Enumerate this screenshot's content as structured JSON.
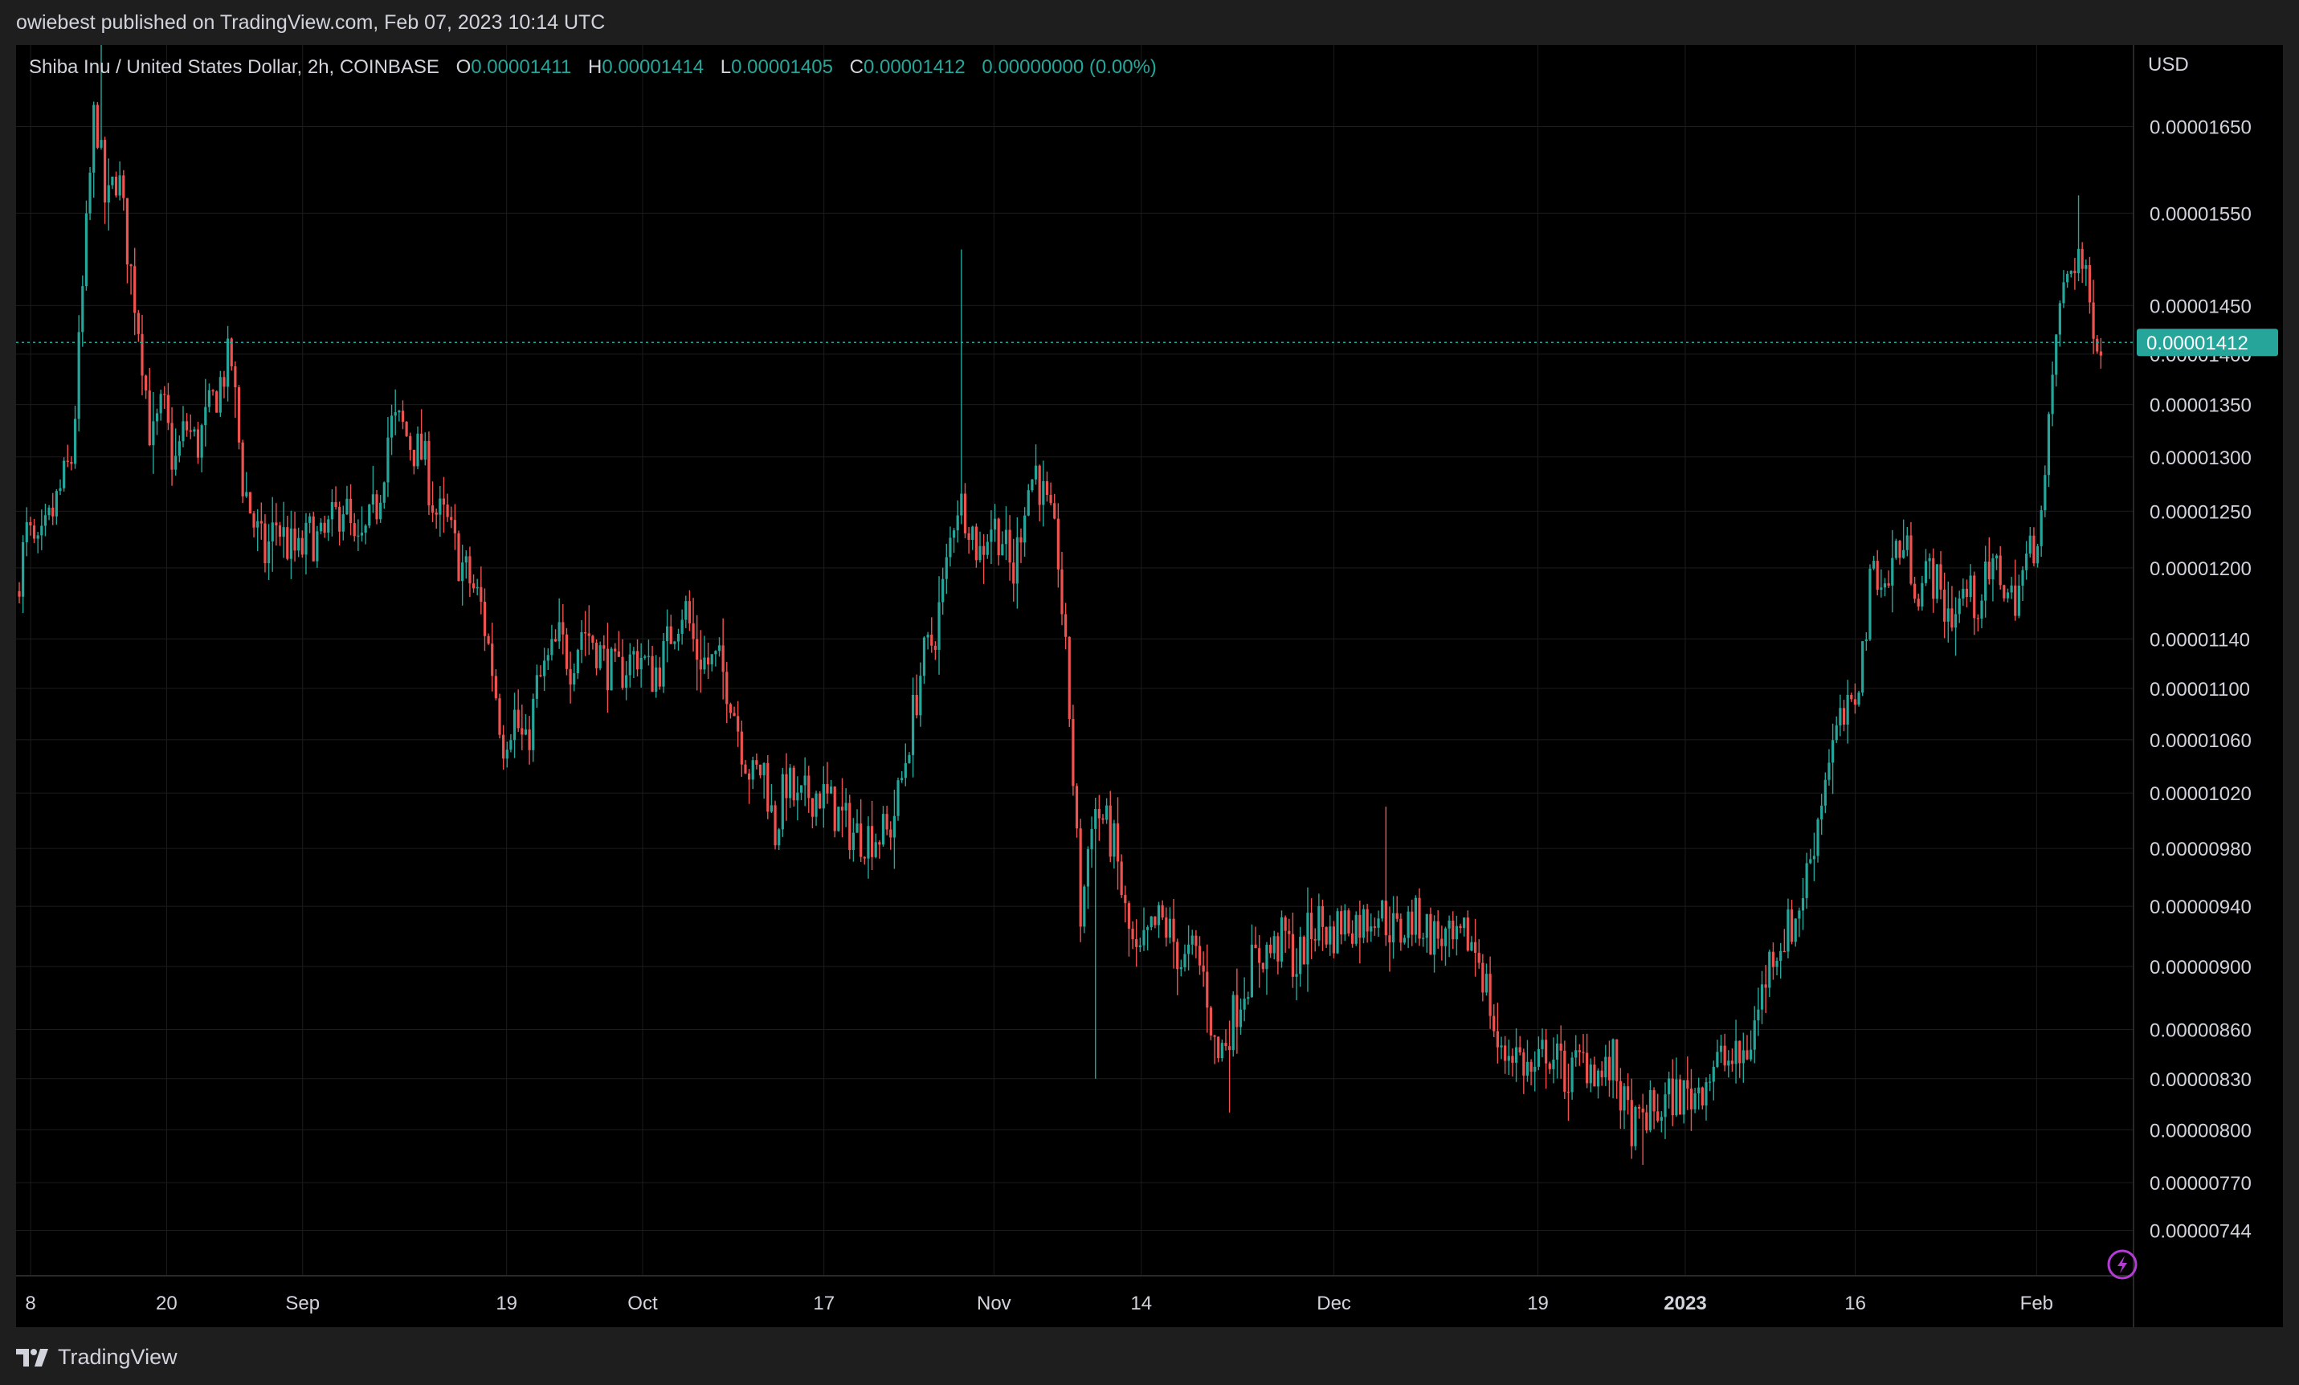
{
  "header": {
    "published": "owiebest published on TradingView.com, Feb 07, 2023 10:14 UTC"
  },
  "legend": {
    "symbol": "Shiba Inu / United States Dollar, 2h, COINBASE",
    "o_label": "O",
    "o": "0.00001411",
    "h_label": "H",
    "h": "0.00001414",
    "l_label": "L",
    "l": "0.00001405",
    "c_label": "C",
    "c": "0.00001412",
    "change": "0.00000000 (0.00%)"
  },
  "footer": {
    "brand": "TradingView"
  },
  "colors": {
    "up": "#26a69a",
    "down": "#ef5350",
    "background": "#000000",
    "grid": "#1c1c1c",
    "text": "#d1d4dc"
  },
  "icons": {
    "logo": "tradingview-logo-icon",
    "lightning": "lightning-icon"
  },
  "chart_data": {
    "type": "candlestick",
    "currency": "USD",
    "y_scale": "log",
    "ylim": [
      7.2e-06,
      1.75e-05
    ],
    "current_price": 1.412e-05,
    "current_label": "0.00001412",
    "grid": true,
    "y_ticks": [
      {
        "v": 1.65e-05,
        "label": "0.00001650"
      },
      {
        "v": 1.55e-05,
        "label": "0.00001550"
      },
      {
        "v": 1.45e-05,
        "label": "0.00001450"
      },
      {
        "v": 1.4e-05,
        "label": "0.00001400"
      },
      {
        "v": 1.35e-05,
        "label": "0.00001350"
      },
      {
        "v": 1.3e-05,
        "label": "0.00001300"
      },
      {
        "v": 1.25e-05,
        "label": "0.00001250"
      },
      {
        "v": 1.2e-05,
        "label": "0.00001200"
      },
      {
        "v": 1.14e-05,
        "label": "0.00001140"
      },
      {
        "v": 1.1e-05,
        "label": "0.00001100"
      },
      {
        "v": 1.06e-05,
        "label": "0.00001060"
      },
      {
        "v": 1.02e-05,
        "label": "0.00001020"
      },
      {
        "v": 9.8e-06,
        "label": "0.00000980"
      },
      {
        "v": 9.4e-06,
        "label": "0.00000940"
      },
      {
        "v": 9e-06,
        "label": "0.00000900"
      },
      {
        "v": 8.6e-06,
        "label": "0.00000860"
      },
      {
        "v": 8.3e-06,
        "label": "0.00000830"
      },
      {
        "v": 8e-06,
        "label": "0.00000800"
      },
      {
        "v": 7.7e-06,
        "label": "0.00000770"
      },
      {
        "v": 7.44e-06,
        "label": "0.00000744"
      }
    ],
    "x_start": "2022-08-07",
    "x_end": "2023-02-07",
    "x_ticks": [
      {
        "date": "2022-08-08",
        "label": "8"
      },
      {
        "date": "2022-08-20",
        "label": "20"
      },
      {
        "date": "2022-09-01",
        "label": "Sep"
      },
      {
        "date": "2022-09-19",
        "label": "19"
      },
      {
        "date": "2022-10-01",
        "label": "Oct"
      },
      {
        "date": "2022-10-17",
        "label": "17"
      },
      {
        "date": "2022-11-01",
        "label": "Nov"
      },
      {
        "date": "2022-11-14",
        "label": "14"
      },
      {
        "date": "2022-12-01",
        "label": "Dec"
      },
      {
        "date": "2022-12-19",
        "label": "19"
      },
      {
        "date": "2023-01-01",
        "label": "2023",
        "bold": true
      },
      {
        "date": "2023-01-16",
        "label": "16"
      },
      {
        "date": "2023-02-01",
        "label": "Feb"
      }
    ],
    "close_series": [
      [
        "2022-08-07",
        1.18e-05
      ],
      [
        "2022-08-08",
        1.23e-05
      ],
      [
        "2022-08-09",
        1.21e-05
      ],
      [
        "2022-08-10",
        1.24e-05
      ],
      [
        "2022-08-11",
        1.27e-05
      ],
      [
        "2022-08-12",
        1.3e-05
      ],
      [
        "2022-08-13",
        1.48e-05
      ],
      [
        "2022-08-14",
        1.68e-05
      ],
      [
        "2022-08-15",
        1.55e-05
      ],
      [
        "2022-08-16",
        1.6e-05
      ],
      [
        "2022-08-17",
        1.5e-05
      ],
      [
        "2022-08-18",
        1.42e-05
      ],
      [
        "2022-08-19",
        1.31e-05
      ],
      [
        "2022-08-20",
        1.35e-05
      ],
      [
        "2022-08-21",
        1.29e-05
      ],
      [
        "2022-08-22",
        1.33e-05
      ],
      [
        "2022-08-23",
        1.31e-05
      ],
      [
        "2022-08-24",
        1.34e-05
      ],
      [
        "2022-08-25",
        1.37e-05
      ],
      [
        "2022-08-26",
        1.4e-05
      ],
      [
        "2022-08-27",
        1.28e-05
      ],
      [
        "2022-08-28",
        1.24e-05
      ],
      [
        "2022-08-29",
        1.21e-05
      ],
      [
        "2022-08-30",
        1.24e-05
      ],
      [
        "2022-08-31",
        1.22e-05
      ],
      [
        "2022-09-01",
        1.21e-05
      ],
      [
        "2022-09-02",
        1.23e-05
      ],
      [
        "2022-09-03",
        1.22e-05
      ],
      [
        "2022-09-04",
        1.24e-05
      ],
      [
        "2022-09-05",
        1.26e-05
      ],
      [
        "2022-09-06",
        1.21e-05
      ],
      [
        "2022-09-07",
        1.23e-05
      ],
      [
        "2022-09-08",
        1.26e-05
      ],
      [
        "2022-09-09",
        1.33e-05
      ],
      [
        "2022-09-10",
        1.33e-05
      ],
      [
        "2022-09-11",
        1.31e-05
      ],
      [
        "2022-09-12",
        1.3e-05
      ],
      [
        "2022-09-13",
        1.25e-05
      ],
      [
        "2022-09-14",
        1.24e-05
      ],
      [
        "2022-09-15",
        1.21e-05
      ],
      [
        "2022-09-16",
        1.19e-05
      ],
      [
        "2022-09-17",
        1.17e-05
      ],
      [
        "2022-09-18",
        1.12e-05
      ],
      [
        "2022-09-19",
        1.06e-05
      ],
      [
        "2022-09-20",
        1.08e-05
      ],
      [
        "2022-09-21",
        1.05e-05
      ],
      [
        "2022-09-22",
        1.1e-05
      ],
      [
        "2022-09-23",
        1.12e-05
      ],
      [
        "2022-09-24",
        1.14e-05
      ],
      [
        "2022-09-25",
        1.12e-05
      ],
      [
        "2022-09-26",
        1.15e-05
      ],
      [
        "2022-09-27",
        1.14e-05
      ],
      [
        "2022-09-28",
        1.12e-05
      ],
      [
        "2022-09-29",
        1.11e-05
      ],
      [
        "2022-09-30",
        1.12e-05
      ],
      [
        "2022-10-01",
        1.13e-05
      ],
      [
        "2022-10-02",
        1.11e-05
      ],
      [
        "2022-10-03",
        1.12e-05
      ],
      [
        "2022-10-04",
        1.15e-05
      ],
      [
        "2022-10-05",
        1.17e-05
      ],
      [
        "2022-10-06",
        1.13e-05
      ],
      [
        "2022-10-07",
        1.12e-05
      ],
      [
        "2022-10-08",
        1.12e-05
      ],
      [
        "2022-10-09",
        1.1e-05
      ],
      [
        "2022-10-10",
        1.06e-05
      ],
      [
        "2022-10-11",
        1.03e-05
      ],
      [
        "2022-10-12",
        1.04e-05
      ],
      [
        "2022-10-13",
        9.9e-06
      ],
      [
        "2022-10-14",
        1.03e-05
      ],
      [
        "2022-10-15",
        1.01e-05
      ],
      [
        "2022-10-16",
        1.02e-05
      ],
      [
        "2022-10-17",
        1.02e-05
      ],
      [
        "2022-10-18",
        1.01e-05
      ],
      [
        "2022-10-19",
        1e-05
      ],
      [
        "2022-10-20",
        9.9e-06
      ],
      [
        "2022-10-21",
        9.9e-06
      ],
      [
        "2022-10-22",
        9.9e-06
      ],
      [
        "2022-10-23",
        9.9e-06
      ],
      [
        "2022-10-24",
        1.02e-05
      ],
      [
        "2022-10-25",
        1.07e-05
      ],
      [
        "2022-10-26",
        1.12e-05
      ],
      [
        "2022-10-27",
        1.14e-05
      ],
      [
        "2022-10-28",
        1.19e-05
      ],
      [
        "2022-10-29",
        1.26e-05
      ],
      [
        "2022-10-30",
        1.25e-05
      ],
      [
        "2022-10-31",
        1.21e-05
      ],
      [
        "2022-11-01",
        1.24e-05
      ],
      [
        "2022-11-02",
        1.23e-05
      ],
      [
        "2022-11-03",
        1.19e-05
      ],
      [
        "2022-11-04",
        1.26e-05
      ],
      [
        "2022-11-05",
        1.29e-05
      ],
      [
        "2022-11-06",
        1.25e-05
      ],
      [
        "2022-11-07",
        1.21e-05
      ],
      [
        "2022-11-08",
        1.08e-05
      ],
      [
        "2022-11-09",
        9.3e-06
      ],
      [
        "2022-11-10",
        1.01e-05
      ],
      [
        "2022-11-11",
        1e-05
      ],
      [
        "2022-11-12",
        9.8e-06
      ],
      [
        "2022-11-13",
        9.3e-06
      ],
      [
        "2022-11-14",
        9e-06
      ],
      [
        "2022-11-15",
        9.2e-06
      ],
      [
        "2022-11-16",
        9.3e-06
      ],
      [
        "2022-11-17",
        9.2e-06
      ],
      [
        "2022-11-18",
        9e-06
      ],
      [
        "2022-11-19",
        9.1e-06
      ],
      [
        "2022-11-20",
        8.9e-06
      ],
      [
        "2022-11-21",
        8.4e-06
      ],
      [
        "2022-11-22",
        8.6e-06
      ],
      [
        "2022-11-23",
        8.8e-06
      ],
      [
        "2022-11-24",
        9e-06
      ],
      [
        "2022-11-25",
        9.1e-06
      ],
      [
        "2022-11-26",
        9.1e-06
      ],
      [
        "2022-11-27",
        9.2e-06
      ],
      [
        "2022-11-28",
        9e-06
      ],
      [
        "2022-11-29",
        9.2e-06
      ],
      [
        "2022-11-30",
        9.3e-06
      ],
      [
        "2022-12-01",
        9.2e-06
      ],
      [
        "2022-12-02",
        9.3e-06
      ],
      [
        "2022-12-03",
        9.3e-06
      ],
      [
        "2022-12-04",
        9.3e-06
      ],
      [
        "2022-12-05",
        9.4e-06
      ],
      [
        "2022-12-06",
        9.3e-06
      ],
      [
        "2022-12-07",
        9.2e-06
      ],
      [
        "2022-12-08",
        9.3e-06
      ],
      [
        "2022-12-09",
        9.3e-06
      ],
      [
        "2022-12-10",
        9.2e-06
      ],
      [
        "2022-12-11",
        9.2e-06
      ],
      [
        "2022-12-12",
        9.1e-06
      ],
      [
        "2022-12-13",
        9.2e-06
      ],
      [
        "2022-12-14",
        9.1e-06
      ],
      [
        "2022-12-15",
        8.8e-06
      ],
      [
        "2022-12-16",
        8.4e-06
      ],
      [
        "2022-12-17",
        8.5e-06
      ],
      [
        "2022-12-18",
        8.4e-06
      ],
      [
        "2022-12-19",
        8.3e-06
      ],
      [
        "2022-12-20",
        8.5e-06
      ],
      [
        "2022-12-21",
        8.4e-06
      ],
      [
        "2022-12-22",
        8.3e-06
      ],
      [
        "2022-12-23",
        8.4e-06
      ],
      [
        "2022-12-24",
        8.4e-06
      ],
      [
        "2022-12-25",
        8.3e-06
      ],
      [
        "2022-12-26",
        8.4e-06
      ],
      [
        "2022-12-27",
        8.1e-06
      ],
      [
        "2022-12-28",
        8e-06
      ],
      [
        "2022-12-29",
        8.1e-06
      ],
      [
        "2022-12-30",
        8.1e-06
      ],
      [
        "2022-12-31",
        8.2e-06
      ],
      [
        "2023-01-01",
        8.2e-06
      ],
      [
        "2023-01-02",
        8.2e-06
      ],
      [
        "2023-01-03",
        8.3e-06
      ],
      [
        "2023-01-04",
        8.4e-06
      ],
      [
        "2023-01-05",
        8.4e-06
      ],
      [
        "2023-01-06",
        8.4e-06
      ],
      [
        "2023-01-07",
        8.5e-06
      ],
      [
        "2023-01-08",
        8.8e-06
      ],
      [
        "2023-01-09",
        9.1e-06
      ],
      [
        "2023-01-10",
        9.2e-06
      ],
      [
        "2023-01-11",
        9.3e-06
      ],
      [
        "2023-01-12",
        9.6e-06
      ],
      [
        "2023-01-13",
        1e-05
      ],
      [
        "2023-01-14",
        1.05e-05
      ],
      [
        "2023-01-15",
        1.07e-05
      ],
      [
        "2023-01-16",
        1.08e-05
      ],
      [
        "2023-01-17",
        1.13e-05
      ],
      [
        "2023-01-18",
        1.21e-05
      ],
      [
        "2023-01-19",
        1.18e-05
      ],
      [
        "2023-01-20",
        1.22e-05
      ],
      [
        "2023-01-21",
        1.21e-05
      ],
      [
        "2023-01-22",
        1.18e-05
      ],
      [
        "2023-01-23",
        1.2e-05
      ],
      [
        "2023-01-24",
        1.17e-05
      ],
      [
        "2023-01-25",
        1.16e-05
      ],
      [
        "2023-01-26",
        1.18e-05
      ],
      [
        "2023-01-27",
        1.17e-05
      ],
      [
        "2023-01-28",
        1.19e-05
      ],
      [
        "2023-01-29",
        1.2e-05
      ],
      [
        "2023-01-30",
        1.17e-05
      ],
      [
        "2023-01-31",
        1.19e-05
      ],
      [
        "2023-02-01",
        1.22e-05
      ],
      [
        "2023-02-02",
        1.26e-05
      ],
      [
        "2023-02-03",
        1.42e-05
      ],
      [
        "2023-02-04",
        1.48e-05
      ],
      [
        "2023-02-05",
        1.51e-05
      ],
      [
        "2023-02-06",
        1.45e-05
      ],
      [
        "2023-02-07",
        1.412e-05
      ]
    ],
    "key_extremes": [
      [
        "2022-08-14",
        1.75e-05,
        "high"
      ],
      [
        "2022-10-29",
        1.51e-05,
        "high"
      ],
      [
        "2022-11-09",
        8.3e-06,
        "low"
      ],
      [
        "2022-11-21",
        8.1e-06,
        "low"
      ],
      [
        "2022-12-05",
        1.01e-05,
        "high"
      ],
      [
        "2022-12-28",
        7.8e-06,
        "low"
      ],
      [
        "2023-02-04",
        1.57e-05,
        "high"
      ]
    ]
  }
}
